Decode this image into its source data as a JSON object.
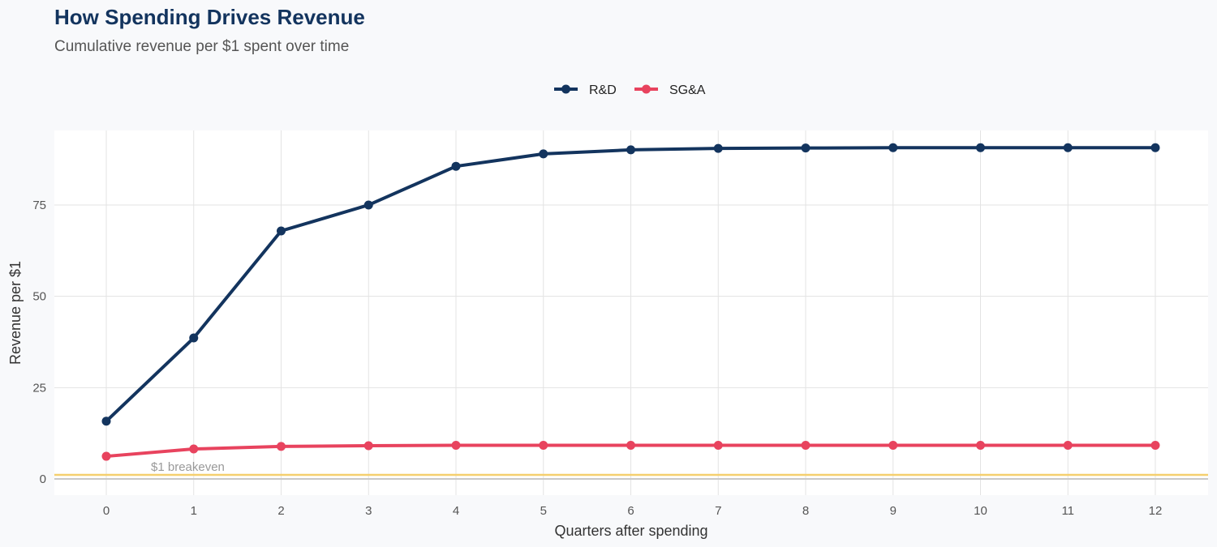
{
  "chart_data": {
    "type": "line",
    "title": "How Spending Drives Revenue",
    "subtitle": "Cumulative revenue per $1 spent over time",
    "xlabel": "Quarters after spending",
    "ylabel": "Revenue per $1",
    "x": [
      0,
      1,
      2,
      3,
      4,
      5,
      6,
      7,
      8,
      9,
      10,
      11,
      12
    ],
    "xticks": [
      "0",
      "1",
      "2",
      "3",
      "4",
      "5",
      "6",
      "7",
      "8",
      "9",
      "10",
      "11",
      "12"
    ],
    "yticks": [
      "0",
      "25",
      "50",
      "75"
    ],
    "ylim": [
      -4.5,
      95.5
    ],
    "xlim": [
      -0.6,
      12.6
    ],
    "grid": true,
    "legend_position": "top",
    "series": [
      {
        "name": "R&D",
        "color": "#13345e",
        "values": [
          15.8,
          38.6,
          67.9,
          75.0,
          85.6,
          89.0,
          90.1,
          90.5,
          90.6,
          90.7,
          90.7,
          90.7,
          90.7
        ]
      },
      {
        "name": "SG&A",
        "color": "#e8435e",
        "values": [
          6.2,
          8.2,
          8.9,
          9.1,
          9.2,
          9.2,
          9.2,
          9.2,
          9.2,
          9.2,
          9.2,
          9.2,
          9.2
        ]
      }
    ],
    "reference_line": {
      "y": 1,
      "label": "$1 breakeven",
      "color": "#f5cf6e"
    }
  }
}
